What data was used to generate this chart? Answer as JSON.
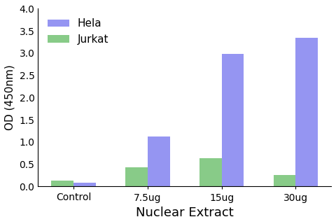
{
  "categories": [
    "Control",
    "7.5ug",
    "15ug",
    "30ug"
  ],
  "hela_values": [
    0.09,
    1.12,
    2.98,
    3.35
  ],
  "jurkat_values": [
    0.13,
    0.43,
    0.64,
    0.26
  ],
  "hela_color": "#7b7bef",
  "jurkat_color": "#6abf6a",
  "xlabel": "Nuclear Extract",
  "ylabel": "OD (450nm)",
  "ylim": [
    0,
    4.0
  ],
  "yticks": [
    0.0,
    0.5,
    1.0,
    1.5,
    2.0,
    2.5,
    3.0,
    3.5,
    4.0
  ],
  "legend_labels": [
    "Hela",
    "Jurkat"
  ],
  "bar_width": 0.3,
  "xlabel_fontsize": 13,
  "ylabel_fontsize": 11,
  "tick_fontsize": 10,
  "legend_fontsize": 11,
  "background_color": "#ffffff"
}
